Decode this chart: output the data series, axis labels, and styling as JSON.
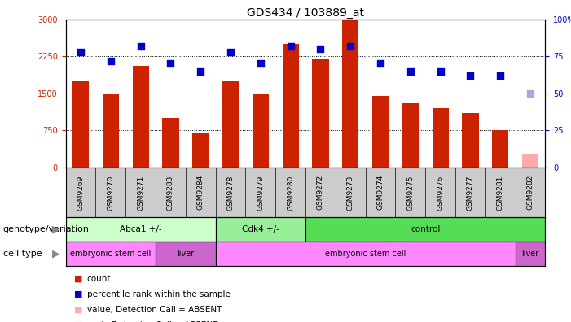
{
  "title": "GDS434 / 103889_at",
  "samples": [
    "GSM9269",
    "GSM9270",
    "GSM9271",
    "GSM9283",
    "GSM9284",
    "GSM9278",
    "GSM9279",
    "GSM9280",
    "GSM9272",
    "GSM9273",
    "GSM9274",
    "GSM9275",
    "GSM9276",
    "GSM9277",
    "GSM9281",
    "GSM9282"
  ],
  "bar_heights": [
    1750,
    1500,
    2050,
    1000,
    700,
    1750,
    1500,
    2500,
    2200,
    2980,
    1450,
    1300,
    1200,
    1100,
    750,
    0
  ],
  "bar_colors": [
    "#cc2200",
    "#cc2200",
    "#cc2200",
    "#cc2200",
    "#cc2200",
    "#cc2200",
    "#cc2200",
    "#cc2200",
    "#cc2200",
    "#cc2200",
    "#cc2200",
    "#cc2200",
    "#cc2200",
    "#cc2200",
    "#cc2200",
    "#ffaaaa"
  ],
  "absent_bar_height": 260,
  "blue_dots": [
    78,
    72,
    82,
    70,
    65,
    78,
    70,
    82,
    80,
    82,
    70,
    65,
    65,
    62,
    62,
    null
  ],
  "absent_dot": 50,
  "absent_dot_color": "#aaaadd",
  "dot_color": "#0000cc",
  "left_ylim": [
    0,
    3000
  ],
  "right_ylim": [
    0,
    100
  ],
  "left_yticks": [
    0,
    750,
    1500,
    2250,
    3000
  ],
  "right_yticks": [
    0,
    25,
    50,
    75,
    100
  ],
  "right_yticklabels": [
    "0",
    "25",
    "50",
    "75",
    "100%"
  ],
  "hlines": [
    750,
    1500,
    2250
  ],
  "genotype_groups": [
    {
      "label": "Abca1 +/-",
      "start": 0,
      "end": 5,
      "color": "#ccffcc"
    },
    {
      "label": "Cdk4 +/-",
      "start": 5,
      "end": 8,
      "color": "#99ee99"
    },
    {
      "label": "control",
      "start": 8,
      "end": 16,
      "color": "#55dd55"
    }
  ],
  "celltype_groups": [
    {
      "label": "embryonic stem cell",
      "start": 0,
      "end": 3,
      "color": "#ff88ff"
    },
    {
      "label": "liver",
      "start": 3,
      "end": 5,
      "color": "#cc66cc"
    },
    {
      "label": "embryonic stem cell",
      "start": 5,
      "end": 15,
      "color": "#ff88ff"
    },
    {
      "label": "liver",
      "start": 15,
      "end": 16,
      "color": "#cc66cc"
    }
  ],
  "genotype_label": "genotype/variation",
  "celltype_label": "cell type",
  "legend_items": [
    {
      "label": "count",
      "color": "#cc2200"
    },
    {
      "label": "percentile rank within the sample",
      "color": "#0000cc"
    },
    {
      "label": "value, Detection Call = ABSENT",
      "color": "#ffaaaa"
    },
    {
      "label": "rank, Detection Call = ABSENT",
      "color": "#aaaadd"
    }
  ],
  "bar_width": 0.55,
  "dot_size": 35,
  "title_fontsize": 10,
  "tick_fontsize": 7,
  "label_fontsize": 8,
  "axis_label_color_left": "#cc2200",
  "axis_label_color_right": "#0000cc",
  "xtick_bg_color": "#cccccc"
}
